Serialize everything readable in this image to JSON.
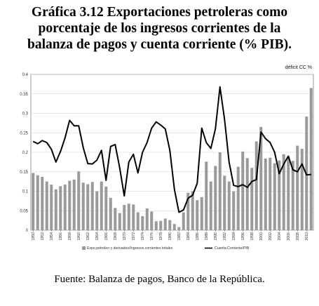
{
  "title_lines": [
    "Gráfica 3.12  Exportaciones  petroleras como",
    "porcentaje de los ingresos corrientes  de la",
    "balanza de pagos y cuenta corriente (% PIB)."
  ],
  "source": "Fuente: Balanza de pagos, Banco de la República.",
  "colors": {
    "bar": "#9a9a9a",
    "line": "#000000",
    "axis": "#555555",
    "grid": "#d0d0d0"
  },
  "chart_data": {
    "type": "bar",
    "corner_label": "déficit  CC %",
    "ylim": [
      0,
      0.4
    ],
    "y_ticks": [
      "0",
      "0.05",
      "0.1",
      "0.15",
      "0.2",
      "0.25",
      "0.3",
      "0.35",
      "0.4"
    ],
    "x_ticks": [
      "1950",
      "1952",
      "1954",
      "1956",
      "1958",
      "1960",
      "1962",
      "1964",
      "1966",
      "1968",
      "1970",
      "1972",
      "1974",
      "1976",
      "1978",
      "1980",
      "1982",
      "1984",
      "1986",
      "1988",
      "1990",
      "1992",
      "1994",
      "1996",
      "1998",
      "2000",
      "2002",
      "2004",
      "2006",
      "2008",
      "2010"
    ],
    "x": [
      1950,
      1951,
      1952,
      1953,
      1954,
      1955,
      1956,
      1957,
      1958,
      1959,
      1960,
      1961,
      1962,
      1963,
      1964,
      1965,
      1966,
      1967,
      1968,
      1969,
      1970,
      1971,
      1972,
      1973,
      1974,
      1975,
      1976,
      1977,
      1978,
      1979,
      1980,
      1981,
      1982,
      1983,
      1984,
      1985,
      1986,
      1987,
      1988,
      1989,
      1990,
      1991,
      1992,
      1993,
      1994,
      1995,
      1996,
      1997,
      1998,
      1999,
      2000,
      2001,
      2002,
      2003,
      2004,
      2005,
      2006,
      2007,
      2008,
      2009,
      2010,
      2011
    ],
    "grid": true,
    "legend_position": "bottom",
    "series": [
      {
        "name": "Expo.petroleo y derivados/Ingresos corrientes totales",
        "type": "bar",
        "values": [
          0.147,
          0.141,
          0.137,
          0.125,
          0.117,
          0.105,
          0.113,
          0.117,
          0.127,
          0.13,
          0.151,
          0.122,
          0.118,
          0.124,
          0.1,
          0.125,
          0.112,
          0.083,
          0.057,
          0.044,
          0.065,
          0.068,
          0.066,
          0.046,
          0.036,
          0.056,
          0.048,
          0.023,
          0.024,
          0.03,
          0.026,
          0.016,
          0.008,
          0.046,
          0.096,
          0.1,
          0.077,
          0.085,
          0.176,
          0.125,
          0.165,
          0.2,
          0.14,
          0.125,
          0.1,
          0.163,
          0.202,
          0.185,
          0.16,
          0.228,
          0.265,
          0.184,
          0.186,
          0.172,
          0.179,
          0.195,
          0.19,
          0.178,
          0.217,
          0.209,
          0.292,
          0.365
        ]
      },
      {
        "name": "Cuenta Corriente/PIB",
        "type": "line",
        "values": [
          0.228,
          0.222,
          0.23,
          0.225,
          0.208,
          0.175,
          0.202,
          0.237,
          0.282,
          0.268,
          0.268,
          0.212,
          0.171,
          0.17,
          0.18,
          0.205,
          0.128,
          0.215,
          0.22,
          0.16,
          0.088,
          0.175,
          0.195,
          0.147,
          0.2,
          0.225,
          0.262,
          0.278,
          0.27,
          0.26,
          0.205,
          0.105,
          0.046,
          0.052,
          0.082,
          0.09,
          0.12,
          0.262,
          0.225,
          0.21,
          0.26,
          0.368,
          0.285,
          0.175,
          0.115,
          0.112,
          0.117,
          0.11,
          0.125,
          0.13,
          0.252,
          0.235,
          0.225,
          0.2,
          0.145,
          0.17,
          0.19,
          0.155,
          0.15,
          0.17,
          0.142,
          0.143
        ]
      }
    ]
  }
}
